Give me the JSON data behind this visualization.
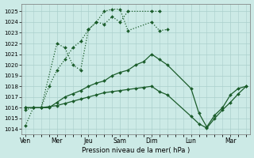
{
  "xlabel": "Pression niveau de la mer( hPa )",
  "background_color": "#cceae6",
  "grid_color": "#aacfcc",
  "line_color": "#1a5c2a",
  "ylim": [
    1013.5,
    1025.7
  ],
  "ytick_values": [
    1014,
    1015,
    1016,
    1017,
    1018,
    1019,
    1020,
    1021,
    1022,
    1023,
    1024,
    1025
  ],
  "xtick_labels": [
    "Ven",
    "Mer",
    "Jeu",
    "Sam",
    "Dim",
    "Lun",
    "Mar"
  ],
  "xtick_positions": [
    0,
    4,
    8,
    12,
    16,
    21,
    26
  ],
  "xlim": [
    -0.5,
    28.5
  ],
  "line1_x": [
    0,
    1,
    2,
    4,
    5,
    6,
    7,
    8,
    9,
    10,
    11,
    12,
    13,
    16,
    17
  ],
  "line1_y": [
    1015.8,
    1016.0,
    1016.0,
    1022.0,
    1021.6,
    1020.0,
    1019.5,
    1023.3,
    1024.0,
    1023.8,
    1024.5,
    1024.0,
    1025.0,
    1025.0,
    1025.0
  ],
  "line2_x": [
    0,
    1,
    2,
    3,
    4,
    5,
    6,
    7,
    8,
    9,
    10,
    11,
    12,
    13,
    16,
    17,
    18
  ],
  "line2_y": [
    1014.3,
    1016.0,
    1016.0,
    1018.0,
    1019.5,
    1020.5,
    1021.6,
    1022.2,
    1023.3,
    1024.0,
    1025.0,
    1025.2,
    1025.2,
    1023.2,
    1024.0,
    1023.2,
    1023.3
  ],
  "line3_x": [
    0,
    1,
    2,
    3,
    4,
    5,
    6,
    7,
    8,
    9,
    10,
    11,
    12,
    13,
    14,
    15,
    16,
    17,
    18,
    21,
    22,
    23,
    24,
    25,
    26,
    27,
    28
  ],
  "line3_y": [
    1016.0,
    1016.0,
    1016.0,
    1016.0,
    1016.5,
    1017.0,
    1017.3,
    1017.6,
    1018.0,
    1018.3,
    1018.5,
    1019.0,
    1019.3,
    1019.5,
    1020.0,
    1020.3,
    1021.0,
    1020.5,
    1020.0,
    1017.8,
    1015.5,
    1014.2,
    1015.3,
    1016.0,
    1017.2,
    1017.8,
    1018.0
  ],
  "line4_x": [
    0,
    1,
    2,
    3,
    4,
    5,
    6,
    7,
    8,
    9,
    10,
    11,
    12,
    13,
    14,
    15,
    16,
    17,
    18,
    21,
    22,
    23,
    24,
    25,
    26,
    27,
    28
  ],
  "line4_y": [
    1016.0,
    1016.0,
    1016.0,
    1016.1,
    1016.2,
    1016.4,
    1016.6,
    1016.8,
    1017.0,
    1017.2,
    1017.4,
    1017.5,
    1017.6,
    1017.7,
    1017.8,
    1017.9,
    1018.0,
    1017.5,
    1017.2,
    1015.2,
    1014.5,
    1014.1,
    1015.0,
    1015.8,
    1016.5,
    1017.3,
    1018.0
  ]
}
